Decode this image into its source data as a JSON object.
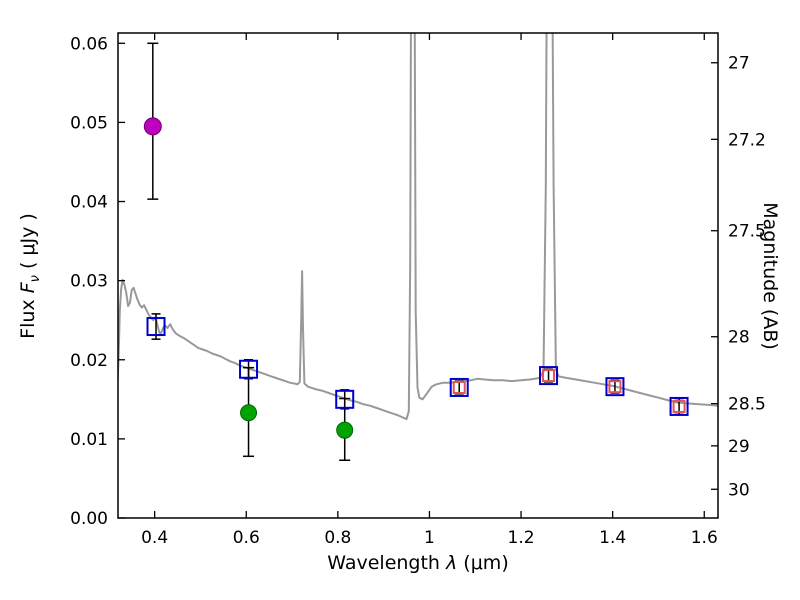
{
  "labels": {
    "x_pre": "Wavelength  ",
    "x_sym": "λ",
    "x_post": " (μm)",
    "y_left_pre": "Flux  ",
    "y_left_sym": "F",
    "y_left_sub": "ν",
    "y_left_post": "  ( μJy )",
    "y_right": "Magnitude (AB)"
  },
  "chart_data": {
    "type": "line+scatter",
    "title": "",
    "xlabel": "Wavelength λ (μm)",
    "ylabel_left": "Flux Fν ( μJy )",
    "ylabel_right": "Magnitude (AB)",
    "xlim": [
      0.32,
      1.63
    ],
    "ylim_flux": [
      0,
      0.0613
    ],
    "grid": false,
    "legend": "none",
    "xticks": {
      "values": [
        0.4,
        0.6,
        0.8,
        1.0,
        1.2,
        1.4,
        1.6
      ],
      "labels": [
        "0.4",
        "0.6",
        "0.8",
        "1",
        "1.2",
        "1.4",
        "1.6"
      ]
    },
    "yticks_flux": {
      "values": [
        0,
        0.01,
        0.02,
        0.03,
        0.04,
        0.05,
        0.06
      ],
      "labels": [
        "0.00",
        "0.01",
        "0.02",
        "0.03",
        "0.04",
        "0.05",
        "0.06"
      ]
    },
    "yticks_mag": [
      {
        "label": "27",
        "flux": 0.05754
      },
      {
        "label": "27.2",
        "flux": 0.04786
      },
      {
        "label": "27.5",
        "flux": 0.03631
      },
      {
        "label": "28",
        "flux": 0.02291
      },
      {
        "label": "28.5",
        "flux": 0.01445
      },
      {
        "label": "29",
        "flux": 0.00912
      },
      {
        "label": "30",
        "flux": 0.00363
      }
    ],
    "colors": {
      "spectrum": "#999999",
      "blue_square": "#0000cc",
      "red_square": "#e05555",
      "magenta_circle": "#bf00bf",
      "green_circle": "#00a400",
      "error_bar": "#000000",
      "axis": "#000000"
    },
    "spectrum": {
      "name": "model-spectrum",
      "points": [
        [
          0.318,
          0.0158
        ],
        [
          0.321,
          0.02
        ],
        [
          0.324,
          0.0262
        ],
        [
          0.327,
          0.029
        ],
        [
          0.33,
          0.0301
        ],
        [
          0.334,
          0.0295
        ],
        [
          0.338,
          0.0285
        ],
        [
          0.342,
          0.0268
        ],
        [
          0.346,
          0.0272
        ],
        [
          0.35,
          0.0288
        ],
        [
          0.354,
          0.0291
        ],
        [
          0.358,
          0.0284
        ],
        [
          0.362,
          0.0277
        ],
        [
          0.367,
          0.027
        ],
        [
          0.372,
          0.0266
        ],
        [
          0.377,
          0.0269
        ],
        [
          0.382,
          0.0263
        ],
        [
          0.387,
          0.0257
        ],
        [
          0.392,
          0.0253
        ],
        [
          0.397,
          0.025
        ],
        [
          0.402,
          0.0254
        ],
        [
          0.407,
          0.0242
        ],
        [
          0.412,
          0.0231
        ],
        [
          0.417,
          0.0238
        ],
        [
          0.422,
          0.0244
        ],
        [
          0.428,
          0.024
        ],
        [
          0.434,
          0.0245
        ],
        [
          0.44,
          0.0238
        ],
        [
          0.447,
          0.0233
        ],
        [
          0.455,
          0.023
        ],
        [
          0.465,
          0.0227
        ],
        [
          0.475,
          0.0223
        ],
        [
          0.485,
          0.0219
        ],
        [
          0.495,
          0.0215
        ],
        [
          0.505,
          0.0213
        ],
        [
          0.515,
          0.0211
        ],
        [
          0.525,
          0.0208
        ],
        [
          0.535,
          0.0206
        ],
        [
          0.545,
          0.0204
        ],
        [
          0.555,
          0.0201
        ],
        [
          0.565,
          0.0198
        ],
        [
          0.575,
          0.0196
        ],
        [
          0.585,
          0.0193
        ],
        [
          0.595,
          0.0191
        ],
        [
          0.605,
          0.0189
        ],
        [
          0.615,
          0.0187
        ],
        [
          0.625,
          0.0185
        ],
        [
          0.635,
          0.0183
        ],
        [
          0.645,
          0.0181
        ],
        [
          0.655,
          0.0179
        ],
        [
          0.665,
          0.0177
        ],
        [
          0.675,
          0.0175
        ],
        [
          0.685,
          0.0173
        ],
        [
          0.695,
          0.0171
        ],
        [
          0.705,
          0.017
        ],
        [
          0.712,
          0.0169
        ],
        [
          0.717,
          0.0172
        ],
        [
          0.72,
          0.025
        ],
        [
          0.722,
          0.0312
        ],
        [
          0.724,
          0.024
        ],
        [
          0.727,
          0.017
        ],
        [
          0.735,
          0.0166
        ],
        [
          0.75,
          0.0163
        ],
        [
          0.765,
          0.0161
        ],
        [
          0.78,
          0.0158
        ],
        [
          0.795,
          0.0155
        ],
        [
          0.81,
          0.0152
        ],
        [
          0.825,
          0.0149
        ],
        [
          0.84,
          0.0147
        ],
        [
          0.855,
          0.0144
        ],
        [
          0.87,
          0.0142
        ],
        [
          0.885,
          0.0139
        ],
        [
          0.9,
          0.0136
        ],
        [
          0.915,
          0.0133
        ],
        [
          0.93,
          0.013
        ],
        [
          0.942,
          0.0127
        ],
        [
          0.95,
          0.0125
        ],
        [
          0.955,
          0.0135
        ],
        [
          0.958,
          0.032
        ],
        [
          0.961,
          0.09
        ],
        [
          0.964,
          0.11
        ],
        [
          0.967,
          0.08
        ],
        [
          0.97,
          0.026
        ],
        [
          0.974,
          0.0165
        ],
        [
          0.978,
          0.0152
        ],
        [
          0.985,
          0.015
        ],
        [
          0.995,
          0.0158
        ],
        [
          1.005,
          0.0166
        ],
        [
          1.015,
          0.0169
        ],
        [
          1.03,
          0.0171
        ],
        [
          1.045,
          0.0171
        ],
        [
          1.06,
          0.0172
        ],
        [
          1.075,
          0.0173
        ],
        [
          1.09,
          0.0174
        ],
        [
          1.105,
          0.0176
        ],
        [
          1.12,
          0.0175
        ],
        [
          1.14,
          0.0174
        ],
        [
          1.16,
          0.0174
        ],
        [
          1.18,
          0.0173
        ],
        [
          1.2,
          0.0174
        ],
        [
          1.22,
          0.0175
        ],
        [
          1.24,
          0.0177
        ],
        [
          1.249,
          0.0185
        ],
        [
          1.254,
          0.042
        ],
        [
          1.258,
          0.09
        ],
        [
          1.262,
          0.11
        ],
        [
          1.266,
          0.09
        ],
        [
          1.271,
          0.042
        ],
        [
          1.276,
          0.0188
        ],
        [
          1.282,
          0.0179
        ],
        [
          1.3,
          0.0177
        ],
        [
          1.32,
          0.0175
        ],
        [
          1.34,
          0.0173
        ],
        [
          1.36,
          0.0171
        ],
        [
          1.38,
          0.0169
        ],
        [
          1.4,
          0.0167
        ],
        [
          1.42,
          0.0164
        ],
        [
          1.44,
          0.0161
        ],
        [
          1.46,
          0.0158
        ],
        [
          1.48,
          0.0155
        ],
        [
          1.5,
          0.0152
        ],
        [
          1.52,
          0.0149
        ],
        [
          1.54,
          0.0146
        ],
        [
          1.56,
          0.0145
        ],
        [
          1.585,
          0.0144
        ],
        [
          1.61,
          0.0143
        ],
        [
          1.63,
          0.0142
        ]
      ]
    },
    "circles": [
      {
        "x": 0.396,
        "flux": 0.0495,
        "err_lo": 0.0092,
        "err_hi": 0.0105,
        "color": "#bf00bf",
        "edge": "#70006e",
        "r": 8.5
      },
      {
        "x": 0.605,
        "flux": 0.0133,
        "err_lo": 0.0055,
        "err_hi": 0.0057,
        "color": "#00a400",
        "edge": "#006400",
        "r": 8
      },
      {
        "x": 0.815,
        "flux": 0.0111,
        "err_lo": 0.0038,
        "err_hi": 0.004,
        "color": "#00a400",
        "edge": "#006400",
        "r": 8
      }
    ],
    "blue_squares": [
      {
        "x": 0.403,
        "flux": 0.0242,
        "err": 0.0016
      },
      {
        "x": 0.605,
        "flux": 0.0188,
        "err": 0.0012
      },
      {
        "x": 0.815,
        "flux": 0.015,
        "err": 0.0012
      },
      {
        "x": 1.065,
        "flux": 0.0165,
        "err": 0.0008
      },
      {
        "x": 1.26,
        "flux": 0.018,
        "err": 0.0008
      },
      {
        "x": 1.405,
        "flux": 0.0166,
        "err": 0.0008
      },
      {
        "x": 1.545,
        "flux": 0.0141,
        "err": 0.001
      }
    ],
    "red_squares": [
      {
        "x": 1.065,
        "flux": 0.0165
      },
      {
        "x": 1.26,
        "flux": 0.018
      },
      {
        "x": 1.405,
        "flux": 0.0166
      },
      {
        "x": 1.545,
        "flux": 0.0141
      }
    ]
  }
}
